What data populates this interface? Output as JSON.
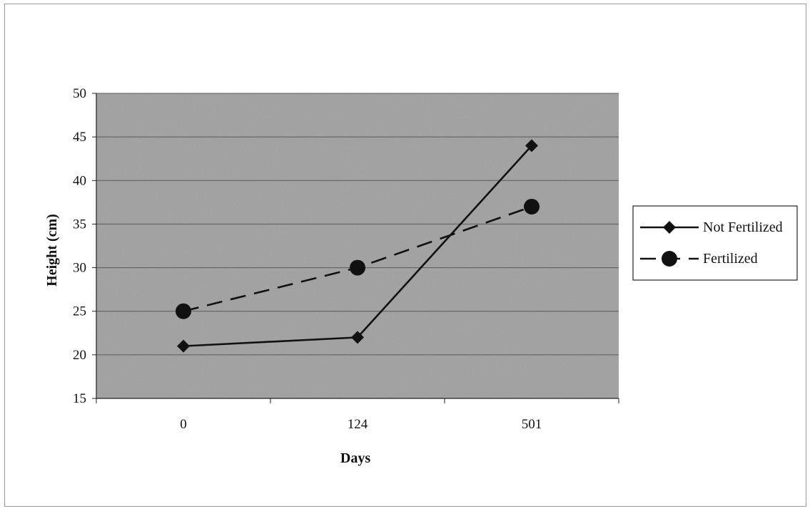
{
  "chart_data": {
    "type": "line",
    "categories": [
      "0",
      "124",
      "501"
    ],
    "series": [
      {
        "name": "Not Fertilized",
        "values": [
          21,
          22,
          44
        ],
        "marker": "diamond",
        "line_style": "solid",
        "color": "#111111"
      },
      {
        "name": "Fertilized",
        "values": [
          25,
          30,
          37
        ],
        "marker": "circle",
        "line_style": "dashed",
        "color": "#111111"
      }
    ],
    "xlabel": "Days",
    "ylabel": "Height (cm)",
    "ylim": [
      15,
      50
    ],
    "yticks": [
      15,
      20,
      25,
      30,
      35,
      40,
      45,
      50
    ],
    "grid": true,
    "legend_position": "right",
    "plot_background": "#a9a9a9",
    "grid_color": "#5a5a5a"
  }
}
